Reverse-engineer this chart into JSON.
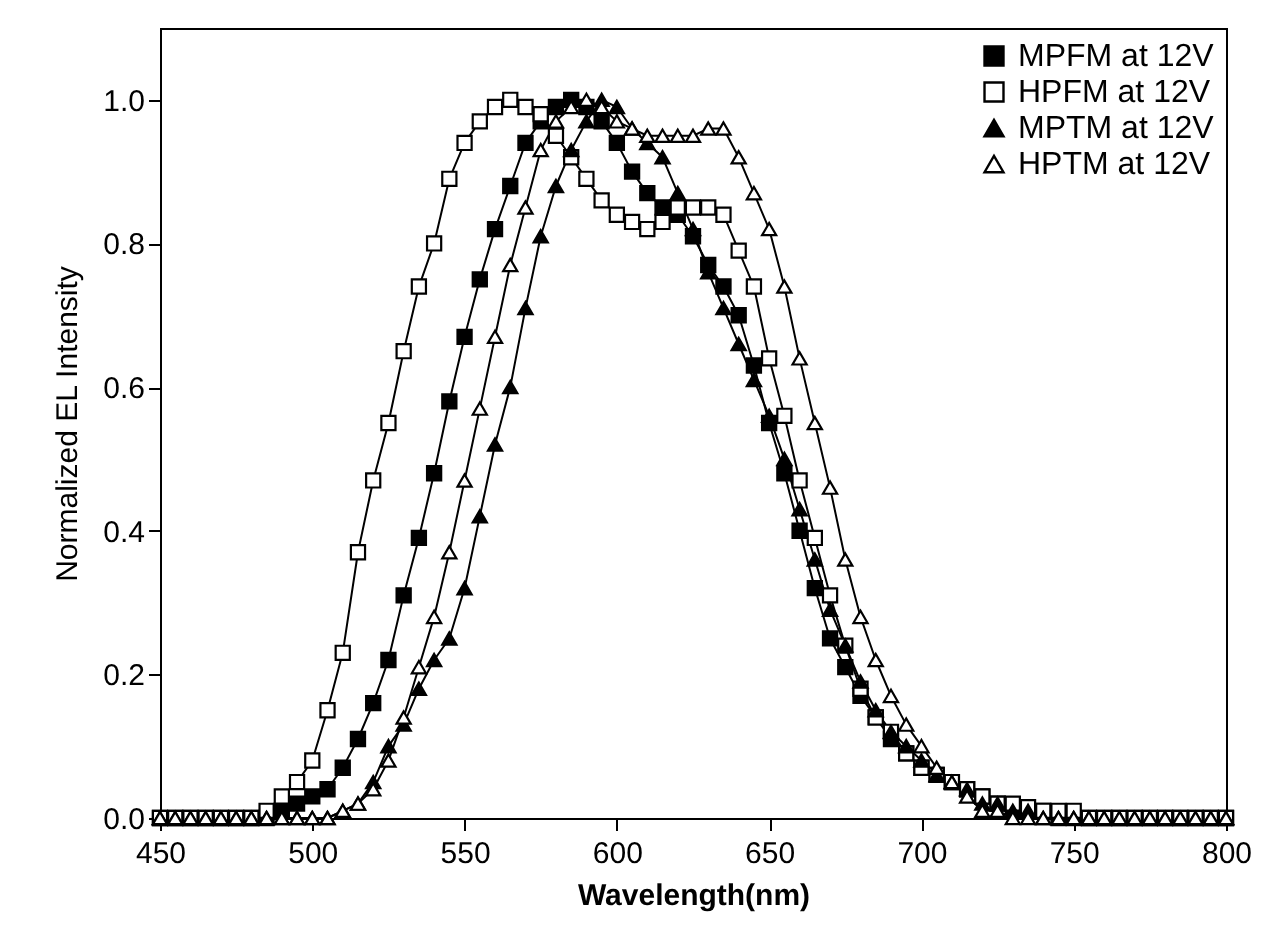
{
  "chart_data": {
    "type": "line",
    "xlabel": "Wavelength(nm)",
    "ylabel": "Normalized EL Intensity",
    "x": [
      450,
      455,
      460,
      465,
      470,
      475,
      480,
      485,
      490,
      495,
      500,
      505,
      510,
      515,
      520,
      525,
      530,
      535,
      540,
      545,
      550,
      555,
      560,
      565,
      570,
      575,
      580,
      585,
      590,
      595,
      600,
      605,
      610,
      615,
      620,
      625,
      630,
      635,
      640,
      645,
      650,
      655,
      660,
      665,
      670,
      675,
      680,
      685,
      690,
      695,
      700,
      705,
      710,
      715,
      720,
      725,
      730,
      735,
      740,
      745,
      750,
      755,
      760,
      765,
      770,
      775,
      780,
      785,
      790,
      795,
      800
    ],
    "xlim": [
      450,
      800
    ],
    "xticks": [
      450,
      500,
      550,
      600,
      650,
      700,
      750,
      800
    ],
    "ylim": [
      0,
      1.1
    ],
    "yticks": [
      {
        "value": 0,
        "label": "0.0"
      },
      {
        "value": 0.2,
        "label": "0.2"
      },
      {
        "value": 0.4,
        "label": "0.4"
      },
      {
        "value": 0.6,
        "label": "0.6"
      },
      {
        "value": 0.8,
        "label": "0.8"
      },
      {
        "value": 1,
        "label": "1.0"
      }
    ],
    "grid": false,
    "legend": "top right",
    "line_style": "solid",
    "series": [
      {
        "name": "MPFM at 12V",
        "color": "#000000",
        "marker": "square",
        "values": [
          0,
          0,
          0,
          0,
          0,
          0,
          0,
          0,
          0.01,
          0.02,
          0.03,
          0.04,
          0.07,
          0.11,
          0.16,
          0.22,
          0.31,
          0.39,
          0.48,
          0.58,
          0.67,
          0.75,
          0.82,
          0.88,
          0.94,
          0.97,
          0.99,
          1.0,
          0.99,
          0.97,
          0.94,
          0.9,
          0.87,
          0.85,
          0.84,
          0.81,
          0.77,
          0.74,
          0.7,
          0.63,
          0.55,
          0.48,
          0.4,
          0.32,
          0.25,
          0.21,
          0.17,
          0.14,
          0.11,
          0.09,
          0.07,
          0.06,
          0.05,
          0.04,
          0.03,
          0.02,
          0.015,
          0.01,
          0.01,
          0,
          0,
          0,
          0,
          0,
          0,
          0,
          0,
          0,
          0,
          0,
          0
        ]
      },
      {
        "name": "HPFM at 12V",
        "color": "#000000",
        "marker": "square-open",
        "values": [
          0,
          0,
          0,
          0,
          0,
          0,
          0,
          0.01,
          0.03,
          0.05,
          0.08,
          0.15,
          0.23,
          0.37,
          0.47,
          0.55,
          0.65,
          0.74,
          0.8,
          0.89,
          0.94,
          0.97,
          0.99,
          1.0,
          0.99,
          0.98,
          0.95,
          0.92,
          0.89,
          0.86,
          0.84,
          0.83,
          0.82,
          0.83,
          0.85,
          0.85,
          0.85,
          0.84,
          0.79,
          0.74,
          0.64,
          0.56,
          0.47,
          0.39,
          0.31,
          0.24,
          0.18,
          0.14,
          0.12,
          0.09,
          0.07,
          0.06,
          0.05,
          0.04,
          0.03,
          0.02,
          0.02,
          0.015,
          0.01,
          0.01,
          0.01,
          0,
          0,
          0,
          0,
          0,
          0,
          0,
          0,
          0,
          0
        ]
      },
      {
        "name": "MPTM at 12V",
        "color": "#000000",
        "marker": "triangle",
        "values": [
          0,
          0,
          0,
          0,
          0,
          0,
          0,
          0,
          0,
          0,
          0,
          0,
          0.01,
          0.02,
          0.05,
          0.1,
          0.13,
          0.18,
          0.22,
          0.25,
          0.32,
          0.42,
          0.52,
          0.6,
          0.71,
          0.81,
          0.88,
          0.93,
          0.97,
          1.0,
          0.99,
          0.96,
          0.94,
          0.92,
          0.87,
          0.82,
          0.76,
          0.71,
          0.66,
          0.61,
          0.56,
          0.5,
          0.43,
          0.36,
          0.29,
          0.24,
          0.19,
          0.15,
          0.12,
          0.1,
          0.08,
          0.06,
          0.05,
          0.04,
          0.02,
          0.02,
          0.01,
          0.01,
          0,
          0,
          0,
          0,
          0,
          0,
          0,
          0,
          0,
          0,
          0,
          0,
          0
        ]
      },
      {
        "name": "HPTM at 12V",
        "color": "#000000",
        "marker": "triangle-open",
        "values": [
          0,
          0,
          0,
          0,
          0,
          0,
          0,
          0,
          0,
          0,
          0,
          0,
          0.01,
          0.02,
          0.04,
          0.08,
          0.14,
          0.21,
          0.28,
          0.37,
          0.47,
          0.57,
          0.67,
          0.77,
          0.85,
          0.93,
          0.97,
          0.99,
          1.0,
          0.99,
          0.97,
          0.96,
          0.95,
          0.95,
          0.95,
          0.95,
          0.96,
          0.96,
          0.92,
          0.87,
          0.82,
          0.74,
          0.64,
          0.55,
          0.46,
          0.36,
          0.28,
          0.22,
          0.17,
          0.13,
          0.1,
          0.07,
          0.05,
          0.03,
          0.01,
          0.01,
          0,
          0,
          0,
          0,
          0,
          0,
          0,
          0,
          0,
          0,
          0,
          0,
          0,
          0,
          0
        ]
      }
    ]
  }
}
